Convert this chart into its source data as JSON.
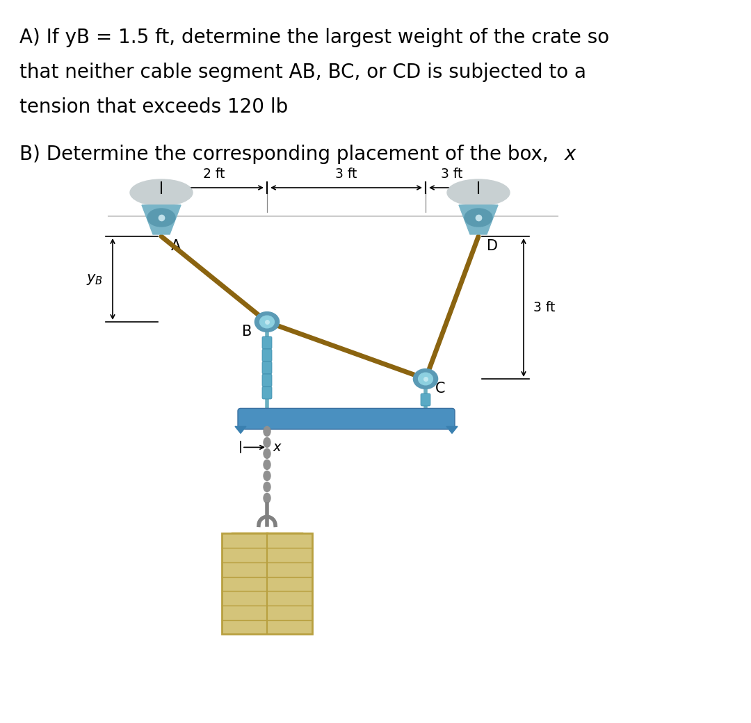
{
  "text_A_line1": "A) If yB = 1.5 ft, determine the largest weight of the crate so",
  "text_A_line2": "that neither cable segment AB, BC, or CD is subjected to a",
  "text_A_line3": "tension that exceeds 120 lb",
  "text_B_line1": "B) Determine the corresponding placement of the box, ",
  "text_B_italic": "x",
  "bg_color": "#ffffff",
  "text_color": "#000000",
  "cable_color": "#8B6410",
  "beam_color": "#4a90c0",
  "crate_color": "#d4c47a",
  "crate_line_color": "#b8a040",
  "connector_color": "#5a9ab5",
  "pulley_gray": "#b0bec0",
  "pulley_teal": "#6aacb8",
  "rope_blue": "#5a9ab5",
  "A": [
    2.0,
    0.0
  ],
  "B": [
    4.0,
    -1.5
  ],
  "C": [
    7.0,
    -2.5
  ],
  "D": [
    8.0,
    0.0
  ],
  "label_2ft": "2 ft",
  "label_3ft_left": "3 ft",
  "label_3ft_right": "3 ft",
  "label_3ft_vert": "3 ft",
  "label_A": "A",
  "label_B": "B",
  "label_C": "C",
  "label_D": "D",
  "label_x": "x",
  "label_yB": "y",
  "label_B_sub": "B"
}
